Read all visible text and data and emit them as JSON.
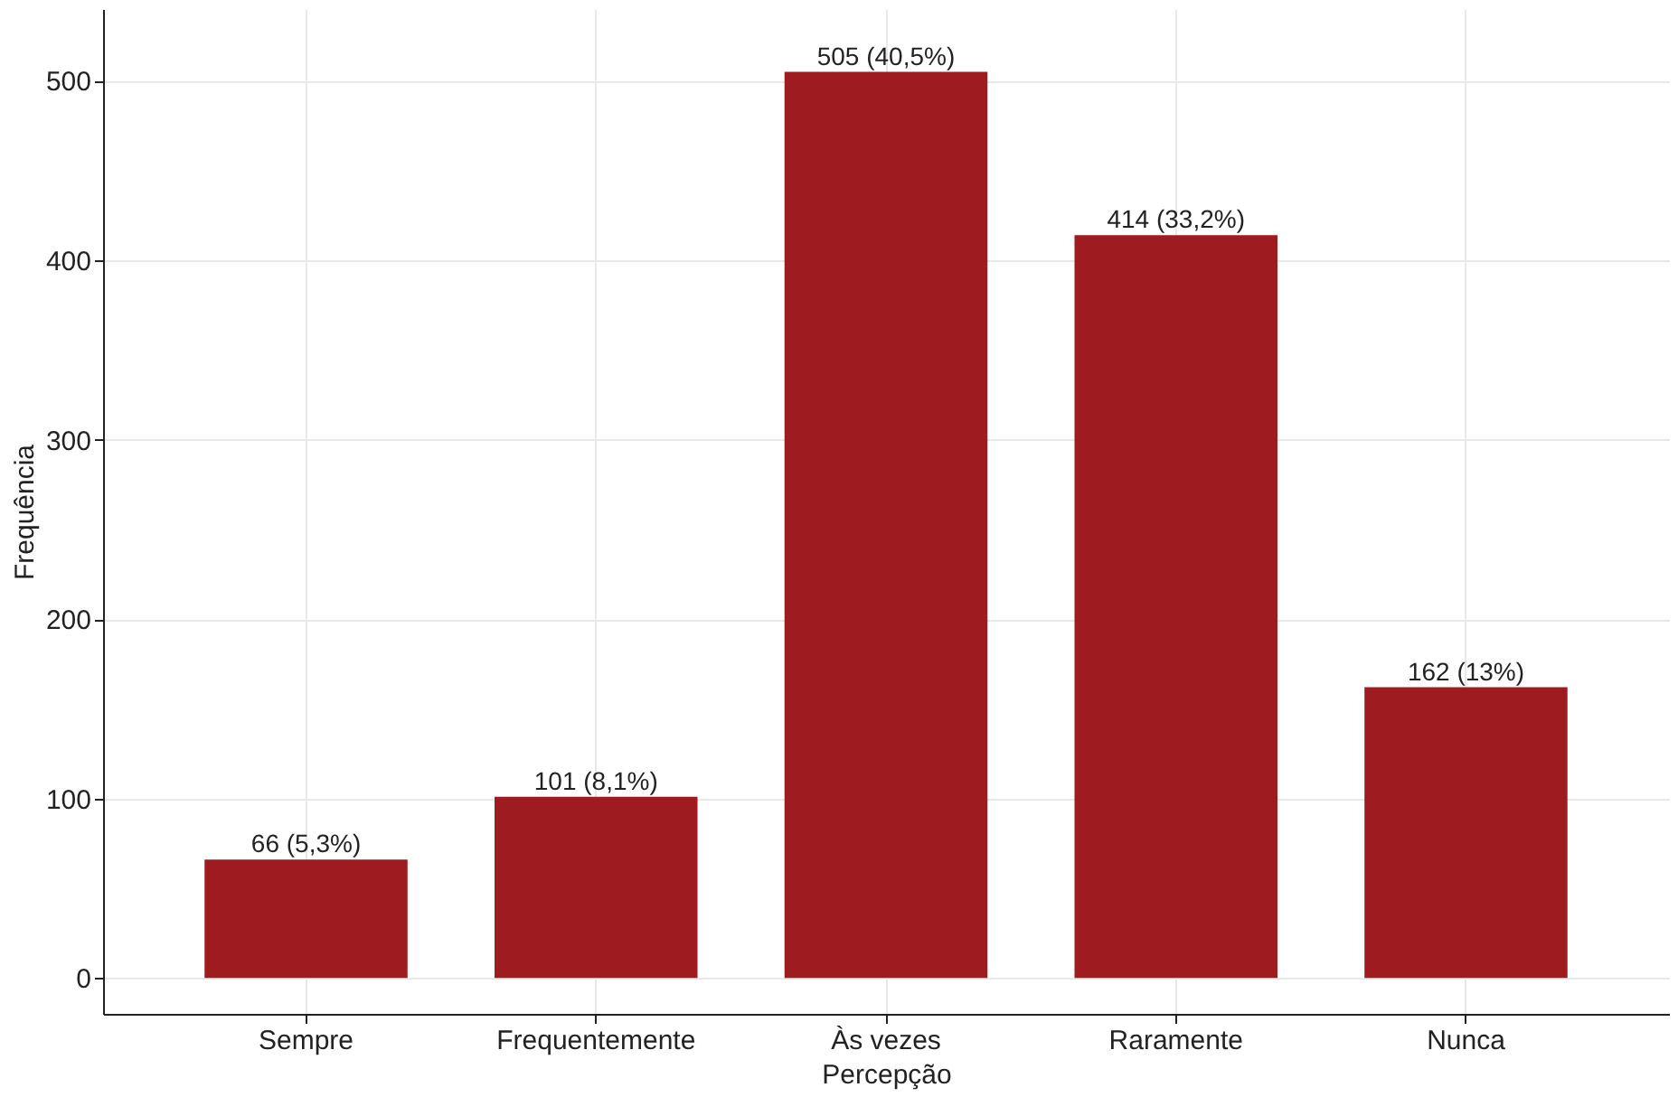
{
  "chart_data": {
    "type": "bar",
    "xlabel": "Percepção",
    "ylabel": "Frequência",
    "categories": [
      "Sempre",
      "Frequentemente",
      "Às vezes",
      "Raramente",
      "Nunca"
    ],
    "values": [
      66,
      101,
      505,
      414,
      162
    ],
    "value_labels": [
      "66 (5,3%)",
      "101 (8,1%)",
      "505 (40,5%)",
      "414 (33,2%)",
      "162 (13%)"
    ],
    "color": "#9e1b20",
    "ylim": [
      -20,
      540
    ],
    "yticks": [
      0,
      100,
      200,
      300,
      400,
      500
    ],
    "grid": true
  }
}
